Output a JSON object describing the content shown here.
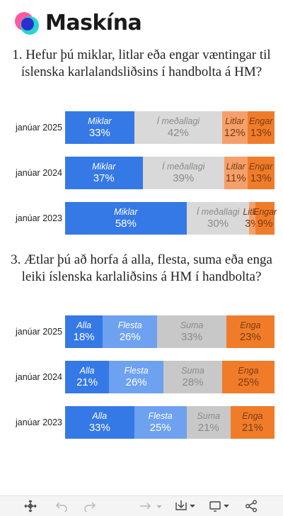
{
  "brand": {
    "name": "Maskína"
  },
  "questions": [
    {
      "title": "1. Hefur þú miklar, litlar eða engar væntingar til íslenska karlalandsliðsins í handbolta á HM?"
    },
    {
      "title": "3. Ætlar þú að horfa á alla, flesta, suma eða enga leiki íslenska karlaliðsins á HM í handbolta?"
    }
  ],
  "chart_data": [
    {
      "type": "bar",
      "orientation": "horizontal",
      "stacked": "percent",
      "categories": [
        "janúar 2025",
        "janúar 2024",
        "janúar 2023"
      ],
      "series": [
        {
          "name": "Miklar",
          "values": [
            33,
            37,
            58
          ],
          "labels": [
            "33%",
            "37%",
            "58%"
          ]
        },
        {
          "name": "Í meðallagi",
          "values": [
            42,
            39,
            30
          ],
          "labels": [
            "42%",
            "39%",
            "30%"
          ]
        },
        {
          "name": "Litlar",
          "values": [
            12,
            11,
            3
          ],
          "labels": [
            "12%",
            "11%",
            "3%"
          ]
        },
        {
          "name": "Engar",
          "values": [
            13,
            13,
            9
          ],
          "labels": [
            "13%",
            "13%",
            "9%"
          ]
        }
      ],
      "colors": [
        "#3579e6",
        "#d9d9d9",
        "#f5a06a",
        "#f07c2a"
      ],
      "grid": false,
      "legend": "none"
    },
    {
      "type": "bar",
      "orientation": "horizontal",
      "stacked": "percent",
      "categories": [
        "janúar 2025",
        "janúar 2024",
        "janúar 2023"
      ],
      "series": [
        {
          "name": "Alla",
          "values": [
            18,
            21,
            33
          ],
          "labels": [
            "18%",
            "21%",
            "33%"
          ]
        },
        {
          "name": "Flesta",
          "values": [
            26,
            26,
            25
          ],
          "labels": [
            "26%",
            "26%",
            "25%"
          ]
        },
        {
          "name": "Suma",
          "values": [
            33,
            28,
            21
          ],
          "labels": [
            "33%",
            "28%",
            "21%"
          ]
        },
        {
          "name": "Enga",
          "values": [
            23,
            25,
            21
          ],
          "labels": [
            "23%",
            "25%",
            "21%"
          ]
        }
      ],
      "colors": [
        "#3579e6",
        "#6ea1ef",
        "#c8c8c8",
        "#f07c2a"
      ],
      "grid": false,
      "legend": "none"
    }
  ],
  "toolbar": {
    "icons": [
      "move-icon",
      "undo-icon",
      "redo-icon",
      "reset-icon",
      "download-icon",
      "fullscreen-icon",
      "share-icon"
    ]
  }
}
